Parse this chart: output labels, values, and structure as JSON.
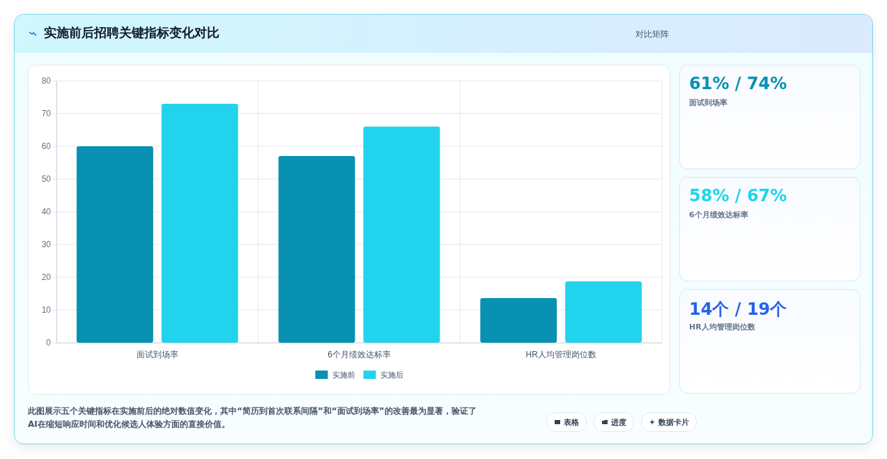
{
  "chart_data": [
    {
      "type": "bar",
      "title": "实施前后招聘关键指标变化对比",
      "subtitle": "对比矩阵",
      "categories": [
        "面试到场率",
        "6个月绩效达标率",
        "HR人均管理岗位数"
      ],
      "series": [
        {
          "name": "实施前",
          "color": "#0891b2",
          "values": [
            60,
            57,
            13.6
          ]
        },
        {
          "name": "实施后",
          "color": "#22d3ee",
          "values": [
            73,
            66,
            18.7
          ]
        }
      ],
      "ylim": [
        0,
        80
      ],
      "yticks": [
        0,
        10,
        20,
        30,
        40,
        50,
        60,
        70,
        80
      ],
      "grid": true,
      "legend": "bottom",
      "annotations": [
        "此图展示五个关键指标在实施前后的绝对数值变化，其中“简历到首次联系间隔”和“面试到场率”的改善最为显著，验证了AI在缩短响应时间和优化候选人体验方面的直接价值。",
        "表格",
        "进度",
        "数据卡片"
      ]
    },
    {
      "type": "other",
      "title": "61% / 74%",
      "subtitle": "面试到场率"
    },
    {
      "type": "other",
      "title": "58% / 67%",
      "subtitle": "6个月绩效达标率"
    },
    {
      "type": "other",
      "title": "14个 / 19个",
      "subtitle": "HR人均管理岗位数"
    }
  ]
}
